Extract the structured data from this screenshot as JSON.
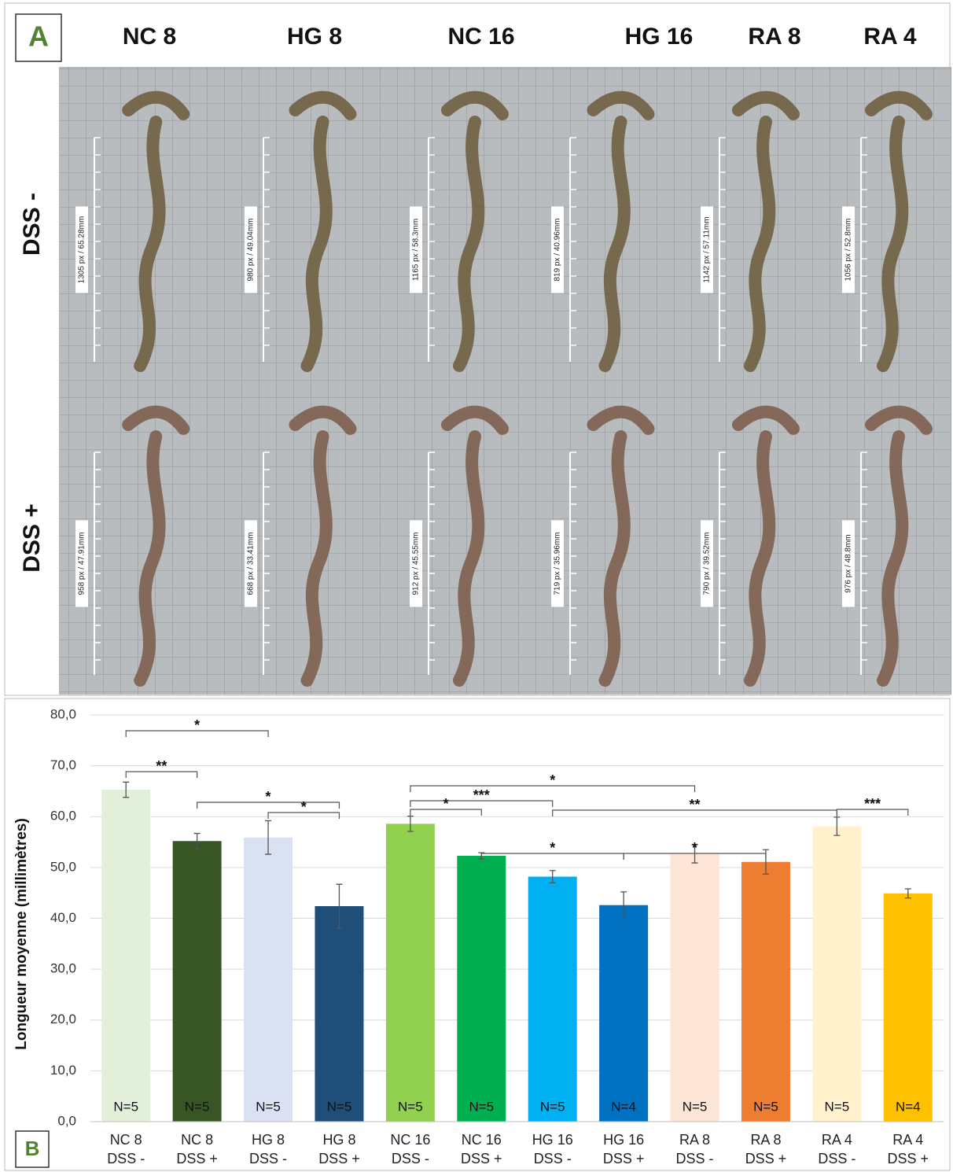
{
  "panel_a": {
    "label": "A",
    "columns": [
      "NC 8",
      "HG 8",
      "NC 16",
      "HG 16",
      "RA 8",
      "RA 4"
    ],
    "rows": [
      "DSS -",
      "DSS +"
    ],
    "scale_labels": [
      [
        "1305 px / 65.28mm",
        "980 px / 49.04mm",
        "1165 px / 58.3mm",
        "819 px / 40.96mm",
        "1142 px / 57.11mm",
        "1056 px / 52.8mm"
      ],
      [
        "958 px / 47.91mm",
        "668 px / 33.41mm",
        "912 px / 45.55mm",
        "719 px / 35.96mm",
        "790 px / 39.52mm",
        "976 px / 48.8mm"
      ]
    ]
  },
  "chart_data": {
    "type": "bar",
    "panel_label": "B",
    "y_label": "Longueur moyenne (millimètres)",
    "categories": [
      [
        "NC 8",
        "DSS -"
      ],
      [
        "NC 8",
        "DSS +"
      ],
      [
        "HG 8",
        "DSS -"
      ],
      [
        "HG 8",
        "DSS +"
      ],
      [
        "NC 16",
        "DSS -"
      ],
      [
        "NC 16",
        "DSS +"
      ],
      [
        "HG 16",
        "DSS -"
      ],
      [
        "HG 16",
        "DSS +"
      ],
      [
        "RA 8",
        "DSS -"
      ],
      [
        "RA 8",
        "DSS +"
      ],
      [
        "RA 4",
        "DSS -"
      ],
      [
        "RA 4",
        "DSS +"
      ]
    ],
    "values": [
      65.3,
      55.2,
      55.9,
      42.4,
      58.6,
      52.3,
      48.2,
      42.6,
      52.7,
      51.1,
      58.1,
      44.9
    ],
    "errors": [
      1.5,
      1.5,
      3.3,
      4.3,
      1.5,
      0.6,
      1.2,
      2.6,
      1.8,
      2.4,
      1.8,
      0.9
    ],
    "colors": [
      "#e2efda",
      "#375623",
      "#d9e1f2",
      "#1f4e78",
      "#92d050",
      "#00b050",
      "#00b0f0",
      "#0070c0",
      "#fce4d6",
      "#ed7d31",
      "#fff2cc",
      "#ffc000"
    ],
    "n_labels": [
      "N=5",
      "N=5",
      "N=5",
      "N=5",
      "N=5",
      "N=5",
      "N=5",
      "N=4",
      "N=5",
      "N=5",
      "N=5",
      "N=4"
    ],
    "significance": [
      {
        "from": 0,
        "to": 2,
        "label": "*"
      },
      {
        "from": 0,
        "to": 1,
        "label": "**"
      },
      {
        "from": 1,
        "to": 3,
        "label": "*"
      },
      {
        "from": 2,
        "to": 3,
        "label": "*"
      },
      {
        "from": 4,
        "to": 8,
        "label": "*"
      },
      {
        "from": 4,
        "to": 6,
        "label": "***"
      },
      {
        "from": 4,
        "to": 5,
        "label": "*"
      },
      {
        "from": 6,
        "to": 10,
        "label": "**"
      },
      {
        "from": 10,
        "to": 11,
        "label": "***"
      },
      {
        "from": 5,
        "to": 7,
        "label": "*"
      },
      {
        "from": 7,
        "to": 9,
        "label": "*"
      }
    ],
    "ylim": [
      0,
      80
    ],
    "yticks": [
      {
        "value": 0,
        "label": "0,0"
      },
      {
        "value": 10,
        "label": "10,0"
      },
      {
        "value": 20,
        "label": "20,0"
      },
      {
        "value": 30,
        "label": "30,0"
      },
      {
        "value": 40,
        "label": "40,0"
      },
      {
        "value": 50,
        "label": "50,0"
      },
      {
        "value": 60,
        "label": "60,0"
      },
      {
        "value": 70,
        "label": "70,0"
      },
      {
        "value": 80,
        "label": "80,0"
      }
    ],
    "grid": true
  }
}
